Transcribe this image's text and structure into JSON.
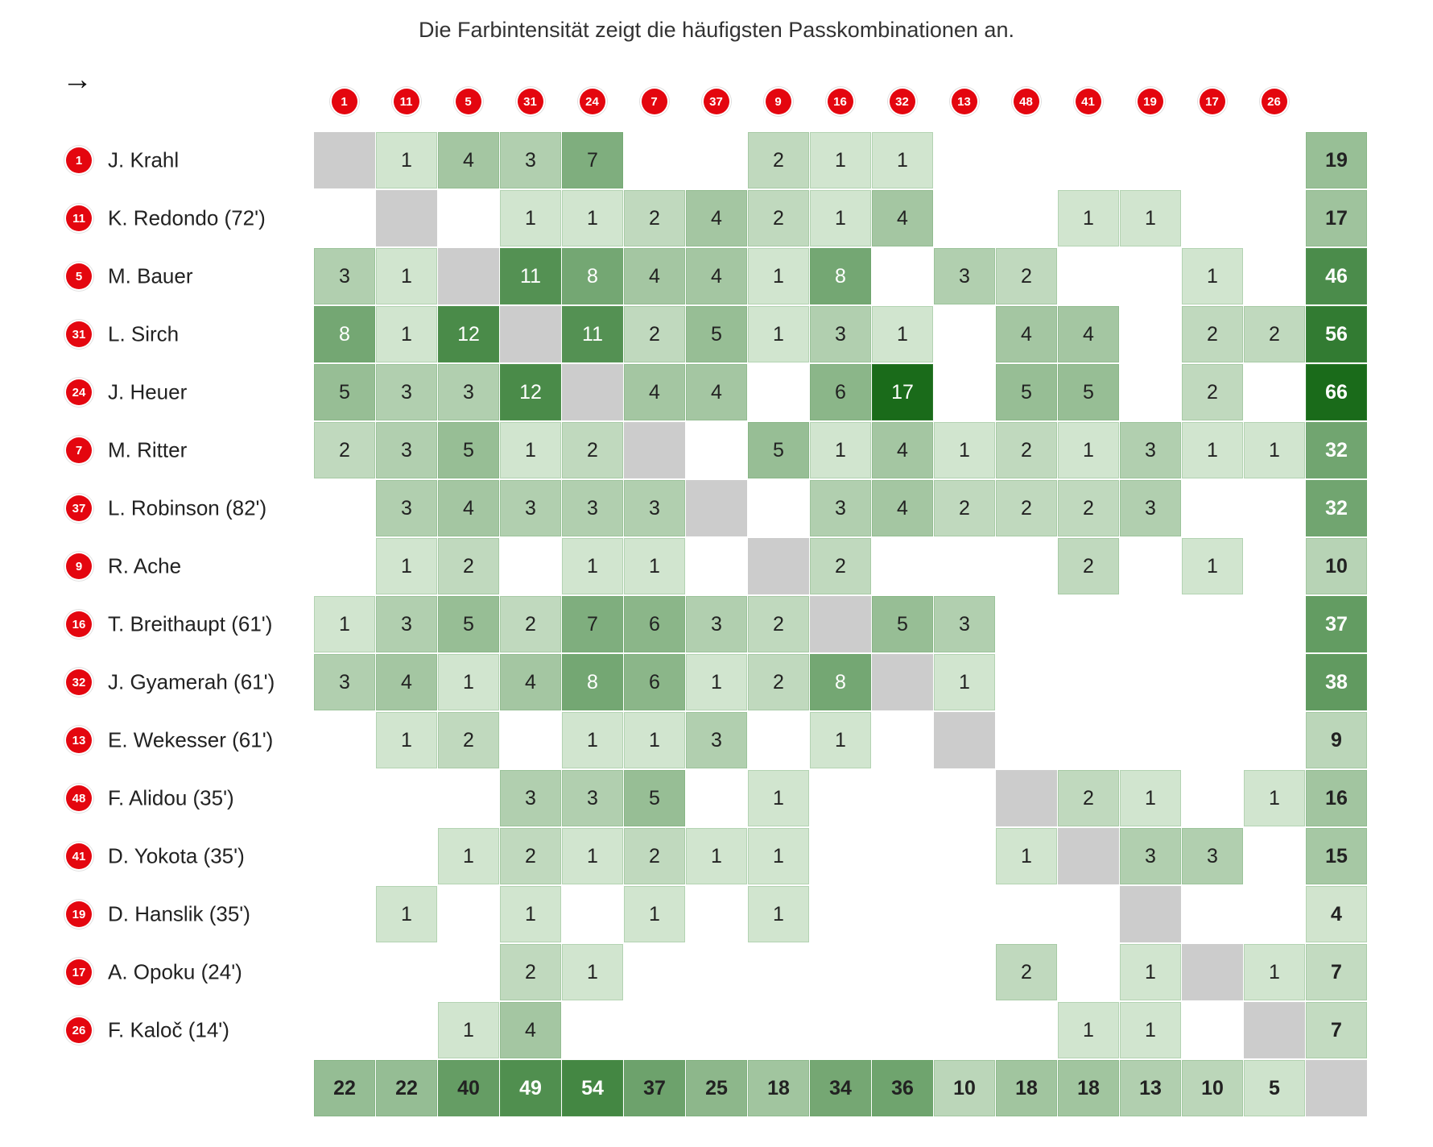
{
  "subtitle": "Die Farbintensität zeigt die häufigsten Passkombinationen an.",
  "arrow": "→",
  "colors": {
    "badge": "#e4060f",
    "diagonal": "#cccccc",
    "scale_max": "#1a6b1a",
    "scale_min": "#eaf5e7"
  },
  "column_numbers": [
    "1",
    "11",
    "5",
    "31",
    "24",
    "7",
    "37",
    "9",
    "16",
    "32",
    "13",
    "48",
    "41",
    "19",
    "17",
    "26"
  ],
  "players": [
    {
      "number": "1",
      "name": "J. Krahl"
    },
    {
      "number": "11",
      "name": "K. Redondo (72')"
    },
    {
      "number": "5",
      "name": "M. Bauer"
    },
    {
      "number": "31",
      "name": "L. Sirch"
    },
    {
      "number": "24",
      "name": "J. Heuer"
    },
    {
      "number": "7",
      "name": "M. Ritter"
    },
    {
      "number": "37",
      "name": "L. Robinson (82')"
    },
    {
      "number": "9",
      "name": "R. Ache"
    },
    {
      "number": "16",
      "name": "T. Breithaupt (61')"
    },
    {
      "number": "32",
      "name": "J. Gyamerah (61')"
    },
    {
      "number": "13",
      "name": "E. Wekesser (61')"
    },
    {
      "number": "48",
      "name": "F. Alidou (35')"
    },
    {
      "number": "41",
      "name": "D. Yokota (35')"
    },
    {
      "number": "19",
      "name": "D. Hanslik (35')"
    },
    {
      "number": "17",
      "name": "A. Opoku (24')"
    },
    {
      "number": "26",
      "name": "F. Kaloč (14')"
    }
  ],
  "chart_data": {
    "type": "heatmap",
    "title": "Die Farbintensität zeigt die häufigsten Passkombinationen an.",
    "rows": [
      "1",
      "11",
      "5",
      "31",
      "24",
      "7",
      "37",
      "9",
      "16",
      "32",
      "13",
      "48",
      "41",
      "19",
      "17",
      "26"
    ],
    "columns": [
      "1",
      "11",
      "5",
      "31",
      "24",
      "7",
      "37",
      "9",
      "16",
      "32",
      "13",
      "48",
      "41",
      "19",
      "17",
      "26"
    ],
    "values": [
      [
        null,
        1,
        4,
        3,
        7,
        null,
        null,
        2,
        1,
        1,
        null,
        null,
        null,
        null,
        null,
        null
      ],
      [
        null,
        null,
        null,
        1,
        1,
        2,
        4,
        2,
        1,
        4,
        null,
        null,
        1,
        1,
        null,
        null
      ],
      [
        3,
        1,
        null,
        11,
        8,
        4,
        4,
        1,
        8,
        null,
        3,
        2,
        null,
        null,
        1,
        null
      ],
      [
        8,
        1,
        12,
        null,
        11,
        2,
        5,
        1,
        3,
        1,
        null,
        4,
        4,
        null,
        2,
        2
      ],
      [
        5,
        3,
        3,
        12,
        null,
        4,
        4,
        null,
        6,
        17,
        null,
        5,
        5,
        null,
        2,
        null
      ],
      [
        2,
        3,
        5,
        1,
        2,
        null,
        null,
        5,
        1,
        4,
        1,
        2,
        1,
        3,
        1,
        1
      ],
      [
        null,
        3,
        4,
        3,
        3,
        3,
        null,
        null,
        3,
        4,
        2,
        2,
        2,
        3,
        null,
        null
      ],
      [
        null,
        1,
        2,
        null,
        1,
        1,
        null,
        null,
        2,
        null,
        null,
        null,
        2,
        null,
        1,
        null
      ],
      [
        1,
        3,
        5,
        2,
        7,
        6,
        3,
        2,
        null,
        5,
        3,
        null,
        null,
        null,
        null,
        null
      ],
      [
        3,
        4,
        1,
        4,
        8,
        6,
        1,
        2,
        8,
        null,
        1,
        null,
        null,
        null,
        null,
        null
      ],
      [
        null,
        1,
        2,
        null,
        1,
        1,
        3,
        null,
        1,
        null,
        null,
        null,
        null,
        null,
        null,
        null
      ],
      [
        null,
        null,
        null,
        3,
        3,
        5,
        null,
        1,
        null,
        null,
        null,
        null,
        2,
        1,
        null,
        1
      ],
      [
        null,
        null,
        1,
        2,
        1,
        2,
        1,
        1,
        null,
        null,
        null,
        1,
        null,
        3,
        3,
        null
      ],
      [
        null,
        1,
        null,
        1,
        null,
        1,
        null,
        1,
        null,
        null,
        null,
        null,
        null,
        null,
        null,
        null
      ],
      [
        null,
        null,
        null,
        2,
        1,
        null,
        null,
        null,
        null,
        null,
        null,
        2,
        null,
        1,
        null,
        1
      ],
      [
        null,
        null,
        1,
        4,
        null,
        null,
        null,
        null,
        null,
        null,
        null,
        null,
        1,
        1,
        null,
        null
      ]
    ],
    "row_totals": [
      19,
      17,
      46,
      56,
      66,
      32,
      32,
      10,
      37,
      38,
      9,
      16,
      15,
      4,
      7,
      7
    ],
    "column_totals": [
      22,
      22,
      40,
      49,
      54,
      37,
      25,
      18,
      34,
      36,
      10,
      18,
      18,
      13,
      10,
      5
    ]
  }
}
